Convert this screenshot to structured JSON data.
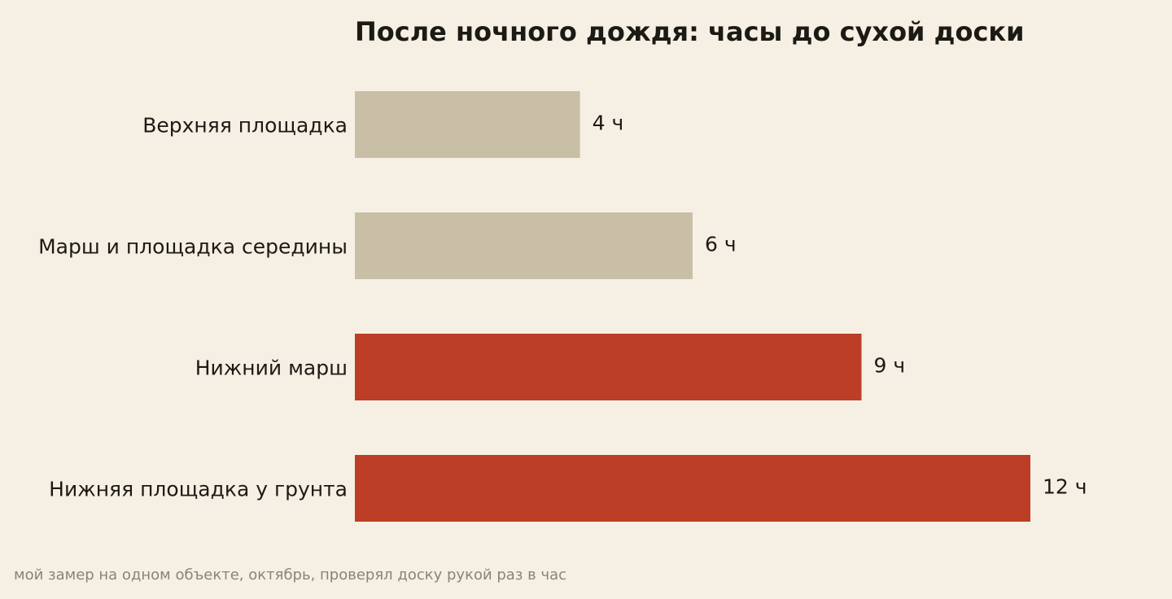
{
  "chart_data": {
    "type": "bar",
    "orientation": "horizontal",
    "title": "После ночного дождя: часы до сухой доски",
    "xlabel": "",
    "ylabel": "",
    "categories": [
      "Верхняя площадка",
      "Марш и площадка середины",
      "Нижний марш",
      "Нижняя площадка у грунта"
    ],
    "values": [
      4,
      6,
      9,
      12
    ],
    "value_labels": [
      "4 ч",
      "6 ч",
      "9 ч",
      "12 ч"
    ],
    "bar_colors": [
      "#c9bfa7",
      "#c9bfa7",
      "#bc3e26",
      "#bc3e26"
    ],
    "xlim": [
      0,
      12
    ],
    "grid": false,
    "legend": "none"
  },
  "footnote": "мой замер на одном объекте, октябрь, проверял доску рукой раз в час",
  "colors": {
    "background": "#f6f0e4",
    "text": "#1c1a14",
    "muted_bar": "#c9bfa7",
    "accent_bar": "#bc3e26",
    "footnote": "#8a8478"
  }
}
